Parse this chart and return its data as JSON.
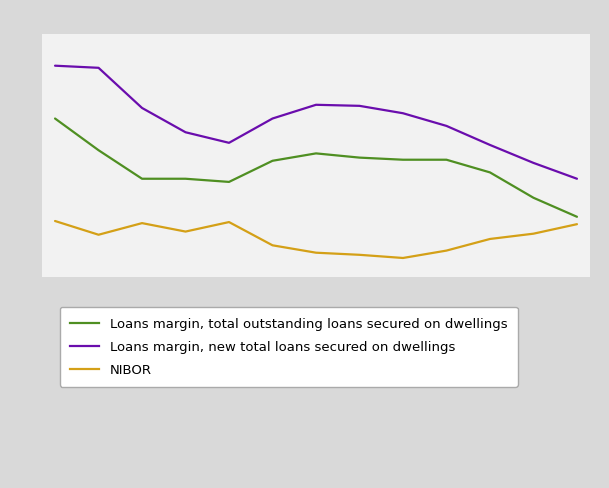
{
  "x": [
    0,
    1,
    2,
    3,
    4,
    5,
    6,
    7,
    8,
    9,
    10,
    11,
    12
  ],
  "green_line": [
    1.75,
    1.45,
    1.18,
    1.18,
    1.15,
    1.35,
    1.42,
    1.38,
    1.36,
    1.36,
    1.24,
    1.0,
    0.82
  ],
  "purple_line": [
    2.25,
    2.23,
    1.85,
    1.62,
    1.52,
    1.75,
    1.88,
    1.87,
    1.8,
    1.68,
    1.5,
    1.33,
    1.18
  ],
  "gold_line": [
    0.78,
    0.65,
    0.76,
    0.68,
    0.77,
    0.55,
    0.48,
    0.46,
    0.43,
    0.5,
    0.61,
    0.66,
    0.75
  ],
  "green_color": "#4f8f22",
  "purple_color": "#6a0dad",
  "gold_color": "#d4a017",
  "outer_bg_color": "#d9d9d9",
  "plot_bg_color": "#f2f2f2",
  "legend_bg_color": "#ffffff",
  "legend_labels": [
    "Loans margin, total outstanding loans secured on dwellings",
    "Loans margin, new total loans secured on dwellings",
    "NIBOR"
  ],
  "ylim": [
    0.25,
    2.55
  ],
  "xlim": [
    -0.3,
    12.3
  ],
  "grid_color": "#c8c8c8",
  "line_width": 1.6,
  "legend_fontsize": 9.5,
  "chart_top_ratio": 0.56
}
